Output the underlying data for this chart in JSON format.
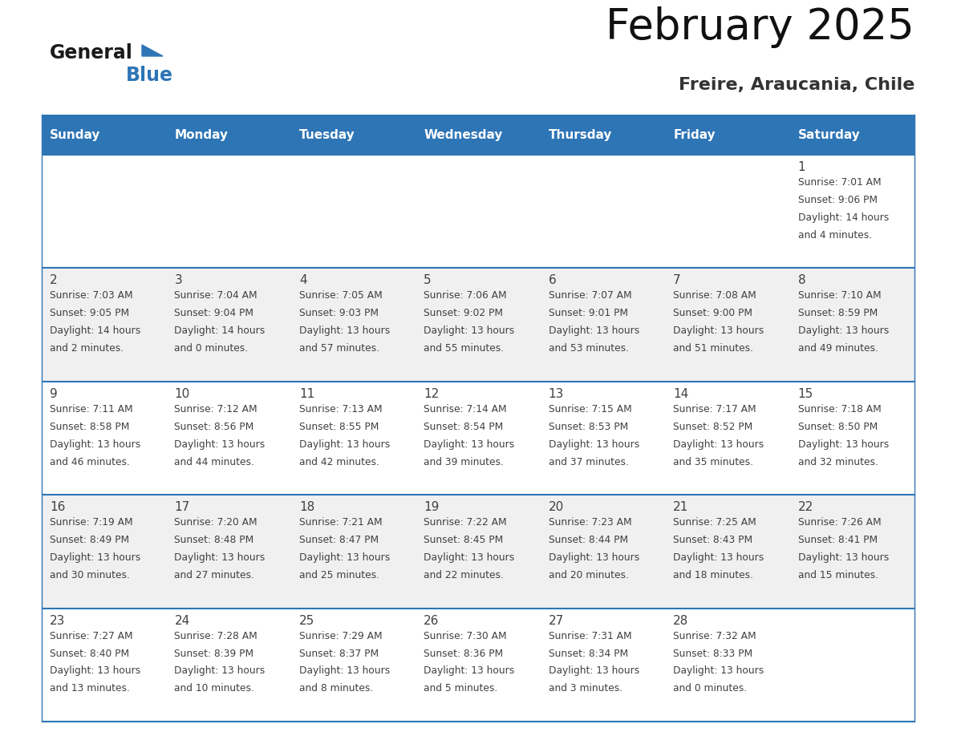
{
  "title": "February 2025",
  "subtitle": "Freire, Araucania, Chile",
  "header_bg": "#2E75B6",
  "header_text_color": "#FFFFFF",
  "cell_bg_white": "#FFFFFF",
  "cell_bg_gray": "#F0F0F0",
  "border_color": "#2E75B6",
  "text_color": "#404040",
  "days_of_week": [
    "Sunday",
    "Monday",
    "Tuesday",
    "Wednesday",
    "Thursday",
    "Friday",
    "Saturday"
  ],
  "calendar": [
    [
      null,
      null,
      null,
      null,
      null,
      null,
      {
        "day": "1",
        "sunrise": "7:01 AM",
        "sunset": "9:06 PM",
        "daylight": "14 hours\nand 4 minutes."
      }
    ],
    [
      {
        "day": "2",
        "sunrise": "7:03 AM",
        "sunset": "9:05 PM",
        "daylight": "14 hours\nand 2 minutes."
      },
      {
        "day": "3",
        "sunrise": "7:04 AM",
        "sunset": "9:04 PM",
        "daylight": "14 hours\nand 0 minutes."
      },
      {
        "day": "4",
        "sunrise": "7:05 AM",
        "sunset": "9:03 PM",
        "daylight": "13 hours\nand 57 minutes."
      },
      {
        "day": "5",
        "sunrise": "7:06 AM",
        "sunset": "9:02 PM",
        "daylight": "13 hours\nand 55 minutes."
      },
      {
        "day": "6",
        "sunrise": "7:07 AM",
        "sunset": "9:01 PM",
        "daylight": "13 hours\nand 53 minutes."
      },
      {
        "day": "7",
        "sunrise": "7:08 AM",
        "sunset": "9:00 PM",
        "daylight": "13 hours\nand 51 minutes."
      },
      {
        "day": "8",
        "sunrise": "7:10 AM",
        "sunset": "8:59 PM",
        "daylight": "13 hours\nand 49 minutes."
      }
    ],
    [
      {
        "day": "9",
        "sunrise": "7:11 AM",
        "sunset": "8:58 PM",
        "daylight": "13 hours\nand 46 minutes."
      },
      {
        "day": "10",
        "sunrise": "7:12 AM",
        "sunset": "8:56 PM",
        "daylight": "13 hours\nand 44 minutes."
      },
      {
        "day": "11",
        "sunrise": "7:13 AM",
        "sunset": "8:55 PM",
        "daylight": "13 hours\nand 42 minutes."
      },
      {
        "day": "12",
        "sunrise": "7:14 AM",
        "sunset": "8:54 PM",
        "daylight": "13 hours\nand 39 minutes."
      },
      {
        "day": "13",
        "sunrise": "7:15 AM",
        "sunset": "8:53 PM",
        "daylight": "13 hours\nand 37 minutes."
      },
      {
        "day": "14",
        "sunrise": "7:17 AM",
        "sunset": "8:52 PM",
        "daylight": "13 hours\nand 35 minutes."
      },
      {
        "day": "15",
        "sunrise": "7:18 AM",
        "sunset": "8:50 PM",
        "daylight": "13 hours\nand 32 minutes."
      }
    ],
    [
      {
        "day": "16",
        "sunrise": "7:19 AM",
        "sunset": "8:49 PM",
        "daylight": "13 hours\nand 30 minutes."
      },
      {
        "day": "17",
        "sunrise": "7:20 AM",
        "sunset": "8:48 PM",
        "daylight": "13 hours\nand 27 minutes."
      },
      {
        "day": "18",
        "sunrise": "7:21 AM",
        "sunset": "8:47 PM",
        "daylight": "13 hours\nand 25 minutes."
      },
      {
        "day": "19",
        "sunrise": "7:22 AM",
        "sunset": "8:45 PM",
        "daylight": "13 hours\nand 22 minutes."
      },
      {
        "day": "20",
        "sunrise": "7:23 AM",
        "sunset": "8:44 PM",
        "daylight": "13 hours\nand 20 minutes."
      },
      {
        "day": "21",
        "sunrise": "7:25 AM",
        "sunset": "8:43 PM",
        "daylight": "13 hours\nand 18 minutes."
      },
      {
        "day": "22",
        "sunrise": "7:26 AM",
        "sunset": "8:41 PM",
        "daylight": "13 hours\nand 15 minutes."
      }
    ],
    [
      {
        "day": "23",
        "sunrise": "7:27 AM",
        "sunset": "8:40 PM",
        "daylight": "13 hours\nand 13 minutes."
      },
      {
        "day": "24",
        "sunrise": "7:28 AM",
        "sunset": "8:39 PM",
        "daylight": "13 hours\nand 10 minutes."
      },
      {
        "day": "25",
        "sunrise": "7:29 AM",
        "sunset": "8:37 PM",
        "daylight": "13 hours\nand 8 minutes."
      },
      {
        "day": "26",
        "sunrise": "7:30 AM",
        "sunset": "8:36 PM",
        "daylight": "13 hours\nand 5 minutes."
      },
      {
        "day": "27",
        "sunrise": "7:31 AM",
        "sunset": "8:34 PM",
        "daylight": "13 hours\nand 3 minutes."
      },
      {
        "day": "28",
        "sunrise": "7:32 AM",
        "sunset": "8:33 PM",
        "daylight": "13 hours\nand 0 minutes."
      },
      null
    ]
  ],
  "logo_general_color": "#1a1a1a",
  "logo_blue_color": "#2E75B6",
  "logo_triangle_color": "#2E75B6",
  "title_fontsize": 38,
  "subtitle_fontsize": 16,
  "header_fontsize": 11,
  "day_num_fontsize": 11,
  "cell_text_fontsize": 8.8
}
